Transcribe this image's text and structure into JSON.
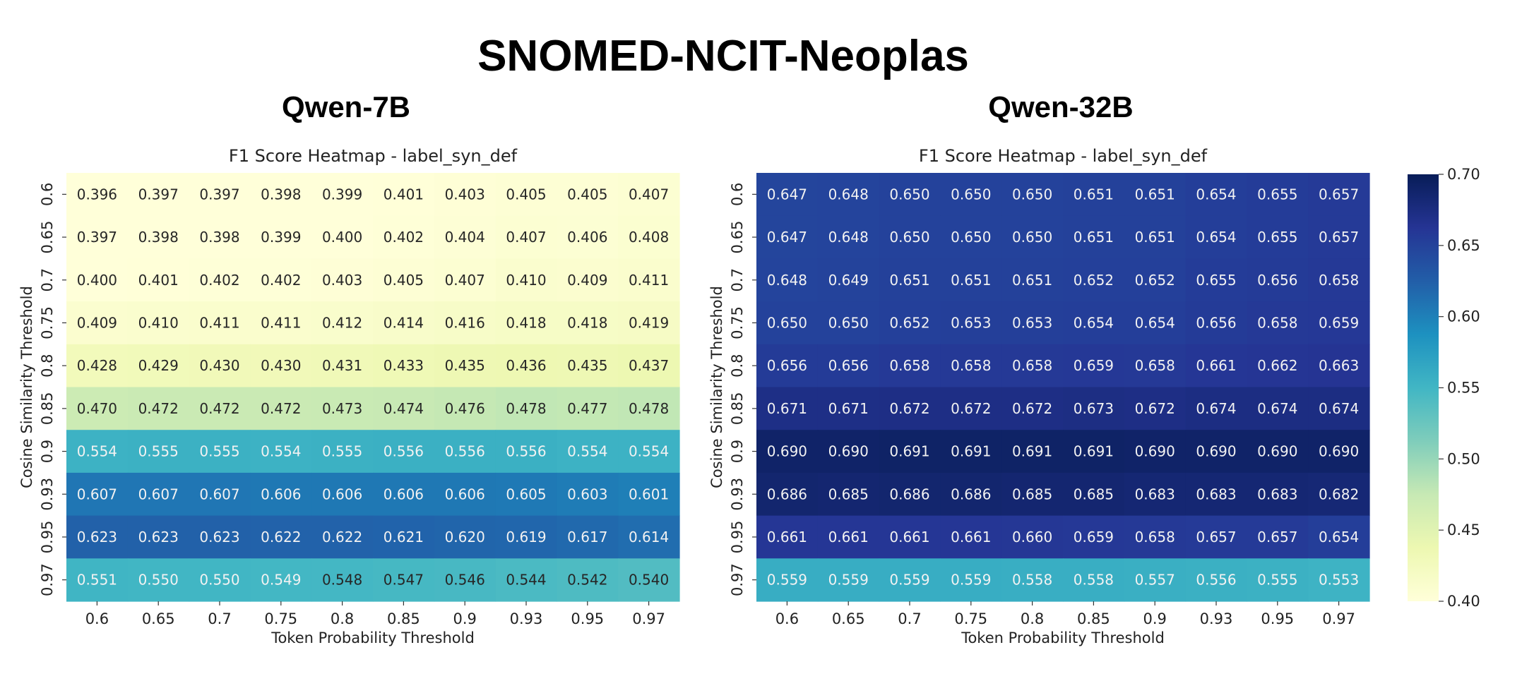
{
  "figure": {
    "title": "SNOMED-NCIT-Neoplas",
    "panels": [
      "Qwen-7B",
      "Qwen-32B"
    ]
  },
  "chart_data": [
    {
      "type": "heatmap",
      "model": "Qwen-7B",
      "title": "F1 Score Heatmap - label_syn_def",
      "xlabel": "Token Probability Threshold",
      "ylabel": "Cosine Similarity Threshold",
      "x_ticks": [
        "0.6",
        "0.65",
        "0.7",
        "0.75",
        "0.8",
        "0.85",
        "0.9",
        "0.93",
        "0.95",
        "0.97"
      ],
      "y_ticks": [
        "0.6",
        "0.65",
        "0.7",
        "0.75",
        "0.8",
        "0.85",
        "0.9",
        "0.93",
        "0.95",
        "0.97"
      ],
      "values": [
        [
          0.396,
          0.397,
          0.397,
          0.398,
          0.399,
          0.401,
          0.403,
          0.405,
          0.405,
          0.407
        ],
        [
          0.397,
          0.398,
          0.398,
          0.399,
          0.4,
          0.402,
          0.404,
          0.407,
          0.406,
          0.408
        ],
        [
          0.4,
          0.401,
          0.402,
          0.402,
          0.403,
          0.405,
          0.407,
          0.41,
          0.409,
          0.411
        ],
        [
          0.409,
          0.41,
          0.411,
          0.411,
          0.412,
          0.414,
          0.416,
          0.418,
          0.418,
          0.419
        ],
        [
          0.428,
          0.429,
          0.43,
          0.43,
          0.431,
          0.433,
          0.435,
          0.436,
          0.435,
          0.437
        ],
        [
          0.47,
          0.472,
          0.472,
          0.472,
          0.473,
          0.474,
          0.476,
          0.478,
          0.477,
          0.478
        ],
        [
          0.554,
          0.555,
          0.555,
          0.554,
          0.555,
          0.556,
          0.556,
          0.556,
          0.554,
          0.554
        ],
        [
          0.607,
          0.607,
          0.607,
          0.606,
          0.606,
          0.606,
          0.606,
          0.605,
          0.603,
          0.601
        ],
        [
          0.623,
          0.623,
          0.623,
          0.622,
          0.622,
          0.621,
          0.62,
          0.619,
          0.617,
          0.614
        ],
        [
          0.551,
          0.55,
          0.55,
          0.549,
          0.548,
          0.547,
          0.546,
          0.544,
          0.542,
          0.54
        ]
      ]
    },
    {
      "type": "heatmap",
      "model": "Qwen-32B",
      "title": "F1 Score Heatmap - label_syn_def",
      "xlabel": "Token Probability Threshold",
      "ylabel": "Cosine Similarity Threshold",
      "x_ticks": [
        "0.6",
        "0.65",
        "0.7",
        "0.75",
        "0.8",
        "0.85",
        "0.9",
        "0.93",
        "0.95",
        "0.97"
      ],
      "y_ticks": [
        "0.6",
        "0.65",
        "0.7",
        "0.75",
        "0.8",
        "0.85",
        "0.9",
        "0.93",
        "0.95",
        "0.97"
      ],
      "values": [
        [
          0.647,
          0.648,
          0.65,
          0.65,
          0.65,
          0.651,
          0.651,
          0.654,
          0.655,
          0.657
        ],
        [
          0.647,
          0.648,
          0.65,
          0.65,
          0.65,
          0.651,
          0.651,
          0.654,
          0.655,
          0.657
        ],
        [
          0.648,
          0.649,
          0.651,
          0.651,
          0.651,
          0.652,
          0.652,
          0.655,
          0.656,
          0.658
        ],
        [
          0.65,
          0.65,
          0.652,
          0.653,
          0.653,
          0.654,
          0.654,
          0.656,
          0.658,
          0.659
        ],
        [
          0.656,
          0.656,
          0.658,
          0.658,
          0.658,
          0.659,
          0.658,
          0.661,
          0.662,
          0.663
        ],
        [
          0.671,
          0.671,
          0.672,
          0.672,
          0.672,
          0.673,
          0.672,
          0.674,
          0.674,
          0.674
        ],
        [
          0.69,
          0.69,
          0.691,
          0.691,
          0.691,
          0.691,
          0.69,
          0.69,
          0.69,
          0.69
        ],
        [
          0.686,
          0.685,
          0.686,
          0.686,
          0.685,
          0.685,
          0.683,
          0.683,
          0.683,
          0.682
        ],
        [
          0.661,
          0.661,
          0.661,
          0.661,
          0.66,
          0.659,
          0.658,
          0.657,
          0.657,
          0.654
        ],
        [
          0.559,
          0.559,
          0.559,
          0.559,
          0.558,
          0.558,
          0.557,
          0.556,
          0.555,
          0.553
        ]
      ]
    }
  ],
  "colorbar": {
    "colormap": "YlGnBu",
    "vmin": 0.4,
    "vmax": 0.7,
    "ticks": [
      "0.70",
      "0.65",
      "0.60",
      "0.55",
      "0.50",
      "0.45",
      "0.40"
    ]
  }
}
